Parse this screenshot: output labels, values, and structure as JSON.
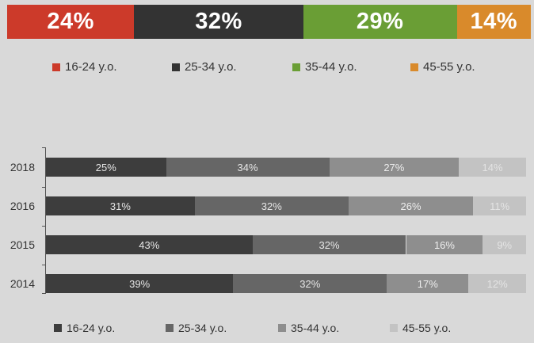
{
  "chart_data": [
    {
      "type": "bar",
      "orientation": "horizontal-stacked-single",
      "series": [
        {
          "name": "16-24 y.o.",
          "value": 24,
          "label": "24%",
          "color": "#cc3a2a"
        },
        {
          "name": "25-34 y.o.",
          "value": 32,
          "label": "32%",
          "color": "#333333"
        },
        {
          "name": "35-44 y.o.",
          "value": 29,
          "label": "29%",
          "color": "#6a9e35"
        },
        {
          "name": "45-55 y.o.",
          "value": 14,
          "label": "14%",
          "color": "#d98a2b"
        }
      ],
      "legend": [
        {
          "label": "16-24 y.o.",
          "color": "#cc3a2a"
        },
        {
          "label": "25-34 y.o.",
          "color": "#333333"
        },
        {
          "label": "35-44 y.o.",
          "color": "#6a9e35"
        },
        {
          "label": "45-55 y.o.",
          "color": "#d98a2b"
        }
      ],
      "legend_placement": "below"
    },
    {
      "type": "bar",
      "orientation": "horizontal-stacked",
      "categories": [
        "2018",
        "2016",
        "2015",
        "2014"
      ],
      "series": [
        {
          "name": "16-24 y.o.",
          "values": [
            25,
            31,
            43,
            39
          ],
          "labels": [
            "25%",
            "31%",
            "43%",
            "39%"
          ],
          "color": "#3d3d3d",
          "text_color": "#e6e6e6"
        },
        {
          "name": "25-34 y.o.",
          "values": [
            34,
            32,
            32,
            32
          ],
          "labels": [
            "34%",
            "32%",
            "32%",
            "32%"
          ],
          "color": "#666666",
          "text_color": "#e6e6e6"
        },
        {
          "name": "35-44 y.o.",
          "values": [
            27,
            26,
            16,
            17
          ],
          "labels": [
            "27%",
            "26%",
            "16%",
            "17%"
          ],
          "color": "#8e8e8e",
          "text_color": "#eeeeee"
        },
        {
          "name": "45-55 y.o.",
          "values": [
            14,
            11,
            9,
            12
          ],
          "labels": [
            "14%",
            "11%",
            "9%",
            "12%"
          ],
          "color": "#c3c3c3",
          "text_color": "#e4e4e4"
        }
      ],
      "legend": [
        {
          "label": "16-24 y.o.",
          "color": "#3d3d3d"
        },
        {
          "label": "25-34 y.o.",
          "color": "#666666"
        },
        {
          "label": "35-44 y.o.",
          "color": "#8e8e8e"
        },
        {
          "label": "45-55 y.o.",
          "color": "#c3c3c3"
        }
      ],
      "legend_placement": "bottom",
      "grid": false
    }
  ]
}
